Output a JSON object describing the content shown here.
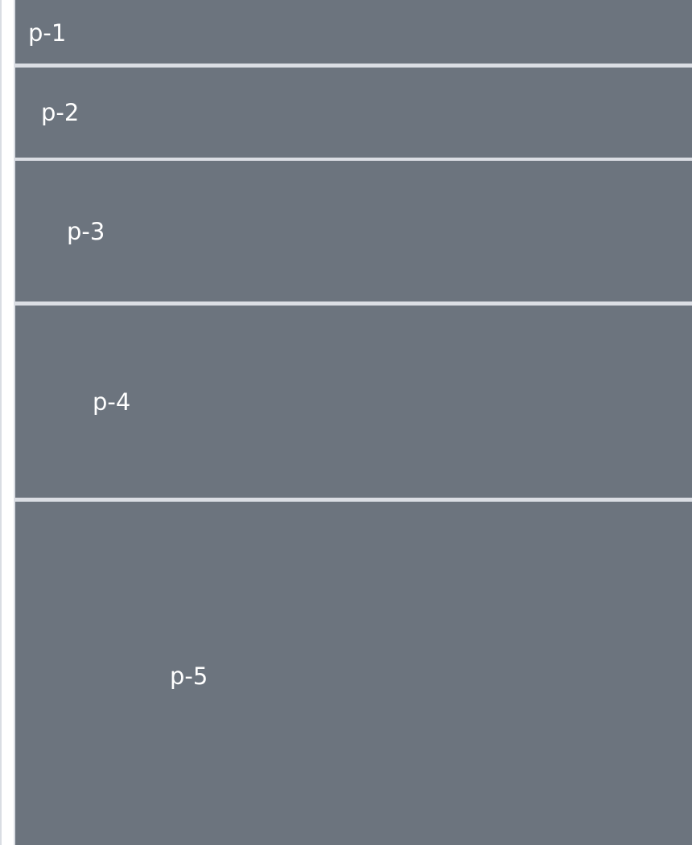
{
  "blocks": [
    {
      "label": "p-1"
    },
    {
      "label": "p-2"
    },
    {
      "label": "p-3"
    },
    {
      "label": "p-4"
    },
    {
      "label": "p-5"
    }
  ],
  "colors": {
    "block_background": "#6c747e",
    "separator": "#dbdee4",
    "label_text": "#ffffff"
  }
}
